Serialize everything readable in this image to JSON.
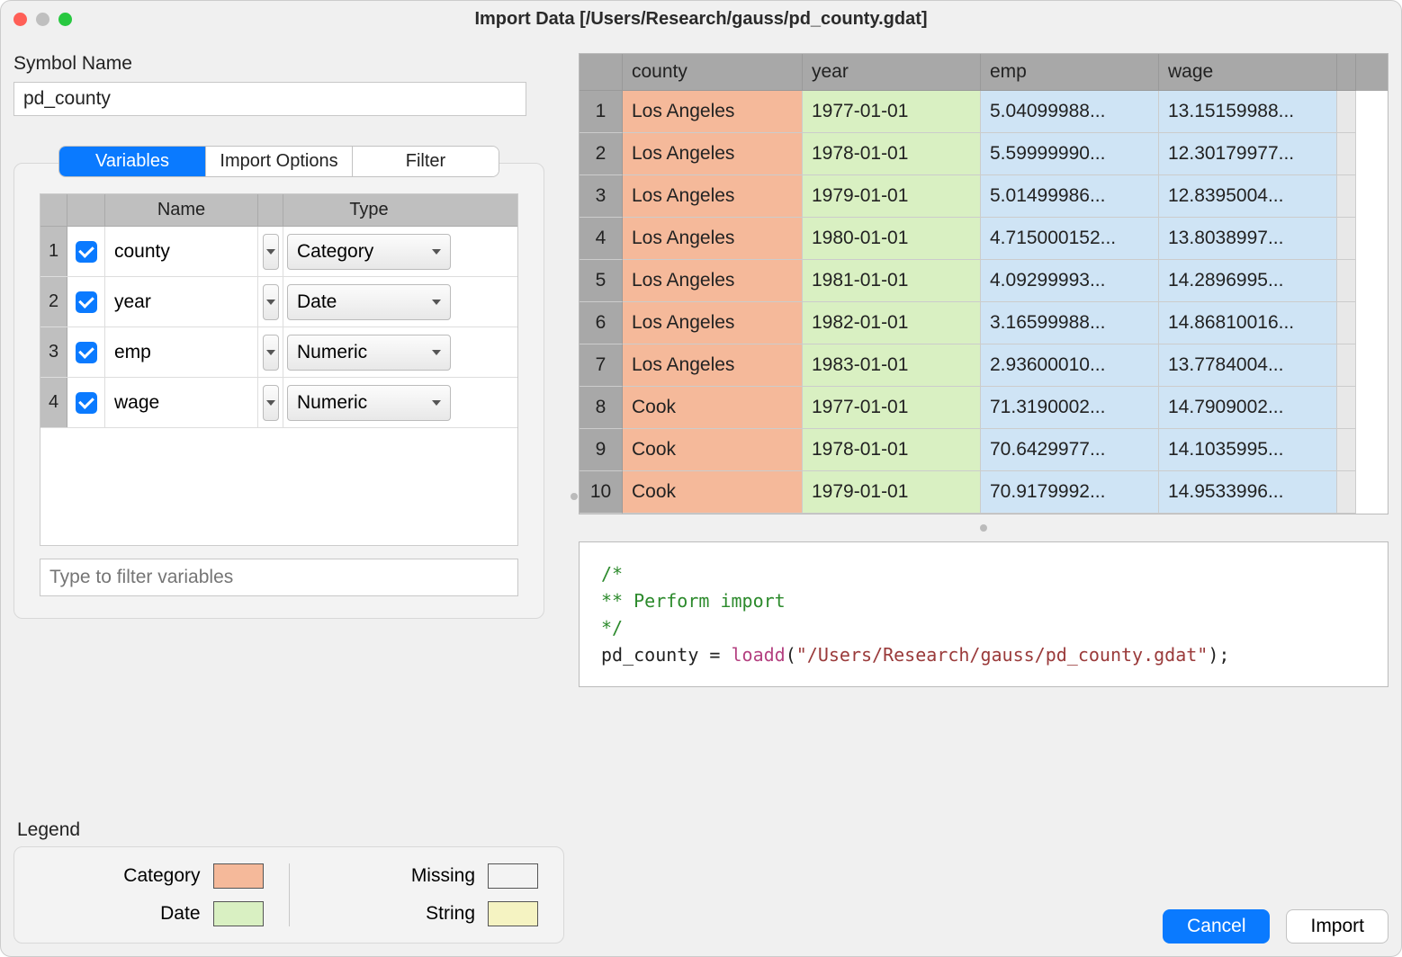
{
  "window": {
    "title": "Import Data [/Users/Research/gauss/pd_county.gdat]"
  },
  "symbol": {
    "label": "Symbol Name",
    "value": "pd_county"
  },
  "tabs": {
    "variables": "Variables",
    "import_options": "Import Options",
    "filter": "Filter"
  },
  "var_table": {
    "headers": {
      "name": "Name",
      "type": "Type"
    },
    "rows": [
      {
        "idx": "1",
        "name": "county",
        "type": "Category"
      },
      {
        "idx": "2",
        "name": "year",
        "type": "Date"
      },
      {
        "idx": "3",
        "name": "emp",
        "type": "Numeric"
      },
      {
        "idx": "4",
        "name": "wage",
        "type": "Numeric"
      }
    ],
    "filter_placeholder": "Type to filter variables"
  },
  "legend": {
    "title": "Legend",
    "items": {
      "category": {
        "label": "Category",
        "color": "#f5b99a"
      },
      "date": {
        "label": "Date",
        "color": "#d9f0c2"
      },
      "missing": {
        "label": "Missing",
        "color": "#f3f3f3"
      },
      "string": {
        "label": "String",
        "color": "#f5f3c2"
      }
    }
  },
  "preview": {
    "columns": [
      "county",
      "year",
      "emp",
      "wage"
    ],
    "column_types": [
      "cat",
      "date",
      "num",
      "num"
    ],
    "rows": [
      {
        "idx": "1",
        "county": "Los Angeles",
        "year": "1977-01-01",
        "emp": "5.04099988...",
        "wage": "13.15159988..."
      },
      {
        "idx": "2",
        "county": "Los Angeles",
        "year": "1978-01-01",
        "emp": "5.59999990...",
        "wage": "12.30179977..."
      },
      {
        "idx": "3",
        "county": "Los Angeles",
        "year": "1979-01-01",
        "emp": "5.01499986...",
        "wage": "12.8395004..."
      },
      {
        "idx": "4",
        "county": "Los Angeles",
        "year": "1980-01-01",
        "emp": "4.715000152...",
        "wage": "13.8038997..."
      },
      {
        "idx": "5",
        "county": "Los Angeles",
        "year": "1981-01-01",
        "emp": "4.09299993...",
        "wage": "14.2896995..."
      },
      {
        "idx": "6",
        "county": "Los Angeles",
        "year": "1982-01-01",
        "emp": "3.16599988...",
        "wage": "14.86810016..."
      },
      {
        "idx": "7",
        "county": "Los Angeles",
        "year": "1983-01-01",
        "emp": "2.93600010...",
        "wage": "13.7784004..."
      },
      {
        "idx": "8",
        "county": "Cook",
        "year": "1977-01-01",
        "emp": "71.3190002...",
        "wage": "14.7909002..."
      },
      {
        "idx": "9",
        "county": "Cook",
        "year": "1978-01-01",
        "emp": "70.6429977...",
        "wage": "14.1035995..."
      },
      {
        "idx": "10",
        "county": "Cook",
        "year": "1979-01-01",
        "emp": "70.9179992...",
        "wage": "14.9533996..."
      }
    ]
  },
  "code": {
    "c1": "/*",
    "c2": "** Perform import",
    "c3": "*/",
    "var": "pd_county",
    "eq": " = ",
    "fn": "loadd",
    "paren_open": "(",
    "str": "\"/Users/Research/gauss/pd_county.gdat\"",
    "paren_close": ");"
  },
  "buttons": {
    "cancel": "Cancel",
    "import": "Import"
  },
  "colors": {
    "accent": "#0a7aff",
    "cat": "#f5b99a",
    "date": "#d9f0c2",
    "num": "#cfe4f5",
    "string": "#f5f3c2",
    "header_gray": "#a8a8a8"
  }
}
